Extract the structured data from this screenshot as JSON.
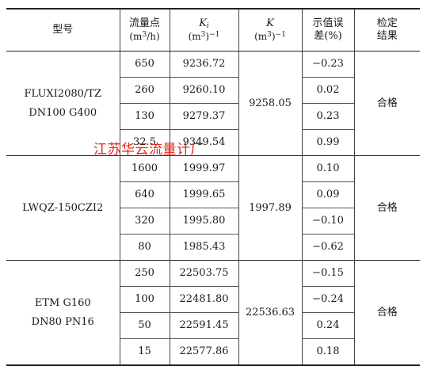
{
  "headers": {
    "model": "型号",
    "flow_point_l1": "流量点",
    "flow_point_unit_prefix": "(m",
    "flow_point_unit_sup": "3",
    "flow_point_unit_suffix": "/h)",
    "ki_symbol": "K",
    "ki_sub": "i",
    "ki_unit_prefix": "(m",
    "ki_unit_sup": "3",
    "ki_unit_mid": ")",
    "ki_unit_exp": "−1",
    "k_symbol": "K",
    "k_unit_prefix": "(m",
    "k_unit_sup": "3",
    "k_unit_mid": ")",
    "k_unit_exp": "−1",
    "error_l1": "示值误",
    "error_l2": "差(%)",
    "result_l1": "检定",
    "result_l2": "结果"
  },
  "groups": [
    {
      "model_lines": [
        "FLUXI2080/TZ",
        "DN100 G400"
      ],
      "k": "9258.05",
      "result": "合格",
      "rows": [
        {
          "flow": "650",
          "ki": "9236.72",
          "error": "−0.23"
        },
        {
          "flow": "260",
          "ki": "9260.10",
          "error": "0.02"
        },
        {
          "flow": "130",
          "ki": "9279.37",
          "error": "0.23"
        },
        {
          "flow": "32.5",
          "ki": "9349.54",
          "error": "0.99"
        }
      ]
    },
    {
      "model_lines": [
        "LWQZ-150CZI2"
      ],
      "k": "1997.89",
      "result": "合格",
      "rows": [
        {
          "flow": "1600",
          "ki": "1999.97",
          "error": "0.10"
        },
        {
          "flow": "640",
          "ki": "1999.65",
          "error": "0.09"
        },
        {
          "flow": "320",
          "ki": "1995.80",
          "error": "−0.10"
        },
        {
          "flow": "80",
          "ki": "1985.43",
          "error": "−0.62"
        }
      ]
    },
    {
      "model_lines": [
        "ETM G160",
        "DN80 PN16"
      ],
      "k": "22536.63",
      "result": "合格",
      "rows": [
        {
          "flow": "250",
          "ki": "22503.75",
          "error": "−0.15"
        },
        {
          "flow": "100",
          "ki": "22481.80",
          "error": "−0.24"
        },
        {
          "flow": "50",
          "ki": "22591.45",
          "error": "0.24"
        },
        {
          "flow": "15",
          "ki": "22577.86",
          "error": "0.18"
        }
      ]
    }
  ],
  "watermark": "江苏华云流量计厂",
  "colors": {
    "watermark": "#e0231b",
    "rule": "#222222"
  }
}
